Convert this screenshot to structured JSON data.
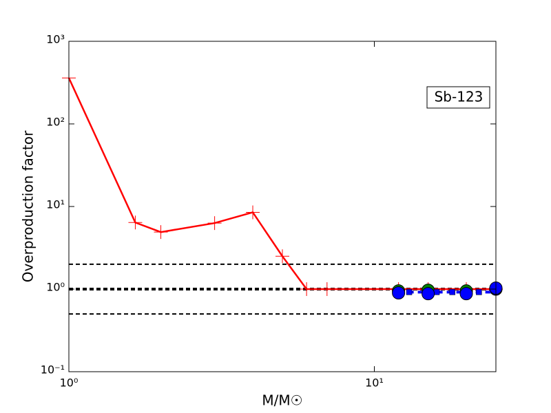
{
  "chart_data": {
    "type": "line",
    "x_label": "M/M☉",
    "y_label": "Overproduction factor",
    "annotation": "Sb-123",
    "xscale": "log",
    "yscale": "log",
    "xlim": [
      1,
      25
    ],
    "ylim": [
      0.1,
      1000
    ],
    "xticks": [
      {
        "value": 1,
        "label": "10⁰"
      },
      {
        "value": 10,
        "label": "10¹"
      }
    ],
    "yticks": [
      {
        "value": 0.1,
        "label": "10⁻¹"
      },
      {
        "value": 1,
        "label": "10⁰"
      },
      {
        "value": 10,
        "label": "10¹"
      },
      {
        "value": 100,
        "label": "10²"
      },
      {
        "value": 1000,
        "label": "10³"
      }
    ],
    "reference_lines": [
      2,
      1,
      0.5
    ],
    "series": [
      {
        "color": "#ff0000",
        "marker": "plus",
        "line": "solid",
        "x": [
          1,
          1.65,
          2,
          3,
          4,
          5,
          6,
          7,
          12,
          15,
          20,
          25
        ],
        "values": [
          360,
          6.4,
          4.9,
          6.3,
          8.5,
          2.5,
          1,
          1,
          1,
          1,
          1,
          1
        ]
      },
      {
        "color": "#008000",
        "marker": "circle",
        "line": "none",
        "x": [
          12,
          15,
          20,
          25
        ],
        "values": [
          0.95,
          0.97,
          0.95,
          1.0
        ]
      },
      {
        "color": "#0000ff",
        "marker": "square",
        "line": "dashed",
        "x": [
          12,
          13,
          15,
          16,
          18,
          20,
          22,
          25
        ],
        "values": [
          0.92,
          0.92,
          0.92,
          0.92,
          0.92,
          0.92,
          0.92,
          0.92
        ]
      },
      {
        "color": "#0000ff",
        "marker": "circle",
        "line": "none",
        "x": [
          12,
          15,
          20,
          25
        ],
        "values": [
          0.9,
          0.88,
          0.88,
          1.03
        ]
      }
    ]
  }
}
